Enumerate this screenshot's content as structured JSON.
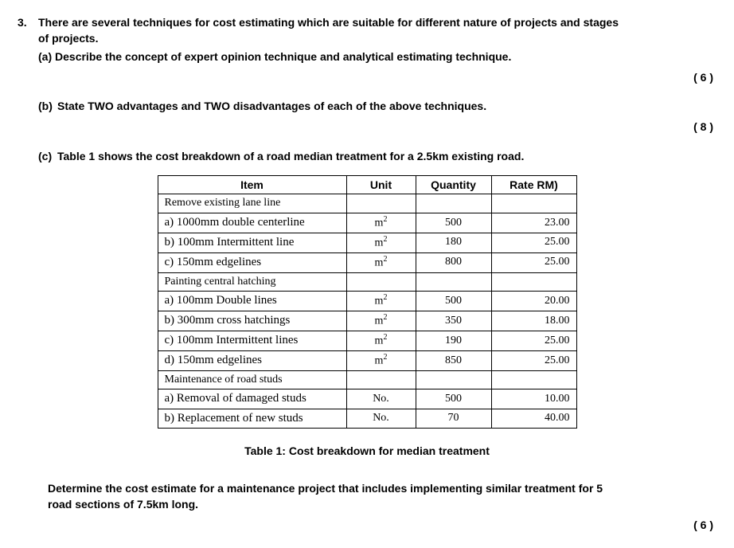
{
  "question_number": "3.",
  "intro_line1": "There are several techniques for cost estimating which are suitable for different nature of projects and stages",
  "intro_line2": "of projects.",
  "parts": {
    "a": {
      "label": "(a)",
      "text": "Describe the concept of expert opinion technique and analytical estimating technique.",
      "marks": "( 6 )"
    },
    "b": {
      "label": "(b)",
      "text": "State TWO advantages and TWO disadvantages of each of the above techniques.",
      "marks": "( 8 )"
    },
    "c": {
      "label": "(c)",
      "text": "Table 1 shows the cost breakdown of a road median treatment for a 2.5km existing road."
    }
  },
  "table": {
    "headers": {
      "item": "Item",
      "unit": "Unit",
      "qty": "Quantity",
      "rate": "Rate RM)"
    },
    "rows": [
      {
        "type": "section",
        "item": "Remove existing lane line"
      },
      {
        "type": "data",
        "item": "a) 1000mm double centerline",
        "unit": "m²",
        "qty": "500",
        "rate": "23.00"
      },
      {
        "type": "data",
        "item": "b) 100mm Intermittent line",
        "unit": "m²",
        "qty": "180",
        "rate": "25.00"
      },
      {
        "type": "data",
        "item": "c) 150mm edgelines",
        "unit": "m²",
        "qty": "800",
        "rate": "25.00"
      },
      {
        "type": "section",
        "item": "Painting central hatching"
      },
      {
        "type": "data",
        "item": "a) 100mm Double lines",
        "unit": "m²",
        "qty": "500",
        "rate": "20.00"
      },
      {
        "type": "data",
        "item": "b) 300mm cross hatchings",
        "unit": "m²",
        "qty": "350",
        "rate": "18.00"
      },
      {
        "type": "data",
        "item": "c) 100mm Intermittent lines",
        "unit": "m²",
        "qty": "190",
        "rate": "25.00"
      },
      {
        "type": "data",
        "item": "d) 150mm edgelines",
        "unit": "m²",
        "qty": "850",
        "rate": "25.00"
      },
      {
        "type": "section",
        "item": "Maintenance of road studs"
      },
      {
        "type": "data",
        "item": "a) Removal of damaged studs",
        "unit": "No.",
        "qty": "500",
        "rate": "10.00"
      },
      {
        "type": "data",
        "item": "b) Replacement of new studs",
        "unit": "No.",
        "qty": "70",
        "rate": "40.00"
      }
    ]
  },
  "caption": "Table 1: Cost breakdown for median treatment",
  "final_line1": "Determine the cost estimate for a maintenance project that includes implementing similar treatment for 5",
  "final_line2": "road sections of 7.5km long.",
  "final_marks": "( 6 )"
}
